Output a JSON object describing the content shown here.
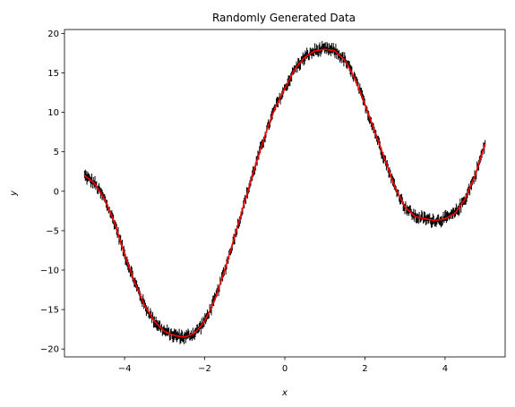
{
  "chart_data": {
    "type": "line",
    "title": "Randomly Generated Data",
    "xlabel": "x",
    "ylabel": "y",
    "xlim": [
      -5.5,
      5.5
    ],
    "ylim": [
      -21,
      20.5
    ],
    "x_ticks": [
      -4,
      -2,
      0,
      2,
      4
    ],
    "x_tick_labels": [
      "−4",
      "−2",
      "0",
      "2",
      "4"
    ],
    "y_ticks": [
      -20,
      -15,
      -10,
      -5,
      0,
      5,
      10,
      15,
      20
    ],
    "y_tick_labels": [
      "−20",
      "−15",
      "−10",
      "−5",
      "0",
      "5",
      "10",
      "15",
      "20"
    ],
    "grid": false,
    "series": [
      {
        "style": "noisy-error-bars",
        "color": "#000000",
        "error_half_width": 0.6,
        "x": [
          -5.0,
          -4.75,
          -4.5,
          -4.25,
          -4.0,
          -3.75,
          -3.5,
          -3.25,
          -3.0,
          -2.75,
          -2.5,
          -2.25,
          -2.0,
          -1.75,
          -1.5,
          -1.25,
          -1.0,
          -0.75,
          -0.5,
          -0.25,
          0.0,
          0.25,
          0.5,
          0.75,
          1.0,
          1.25,
          1.5,
          1.75,
          2.0,
          2.25,
          2.5,
          2.75,
          3.0,
          3.25,
          3.5,
          3.75,
          4.0,
          4.25,
          4.5,
          4.75,
          5.0
        ],
        "y": [
          2.0,
          1.0,
          -1.0,
          -4.0,
          -8.0,
          -11.5,
          -14.5,
          -16.5,
          -17.8,
          -18.3,
          -18.5,
          -18.0,
          -16.5,
          -13.8,
          -10.0,
          -5.7,
          -1.3,
          3.0,
          7.0,
          10.5,
          13.0,
          15.5,
          17.0,
          17.8,
          18.0,
          17.8,
          16.6,
          14.3,
          11.0,
          7.5,
          4.0,
          0.5,
          -2.0,
          -3.2,
          -3.5,
          -3.7,
          -3.5,
          -2.8,
          -1.0,
          2.0,
          6.0
        ]
      },
      {
        "style": "line",
        "color": "#ff0000",
        "x": [
          -5.0,
          -4.75,
          -4.5,
          -4.25,
          -4.0,
          -3.75,
          -3.5,
          -3.25,
          -3.0,
          -2.75,
          -2.5,
          -2.25,
          -2.0,
          -1.75,
          -1.5,
          -1.25,
          -1.0,
          -0.75,
          -0.5,
          -0.25,
          0.0,
          0.25,
          0.5,
          0.75,
          1.0,
          1.25,
          1.5,
          1.75,
          2.0,
          2.25,
          2.5,
          2.75,
          3.0,
          3.25,
          3.5,
          3.75,
          4.0,
          4.25,
          4.5,
          4.75,
          5.0
        ],
        "y": [
          2.0,
          1.0,
          -1.0,
          -4.0,
          -8.0,
          -11.5,
          -14.5,
          -16.5,
          -17.8,
          -18.3,
          -18.5,
          -18.0,
          -16.5,
          -13.8,
          -10.0,
          -5.7,
          -1.3,
          3.0,
          7.0,
          10.5,
          13.0,
          15.5,
          17.0,
          17.8,
          18.0,
          17.8,
          16.6,
          14.3,
          11.0,
          7.5,
          4.0,
          0.5,
          -2.0,
          -3.2,
          -3.5,
          -3.7,
          -3.5,
          -2.8,
          -1.0,
          2.0,
          6.0
        ]
      }
    ]
  }
}
